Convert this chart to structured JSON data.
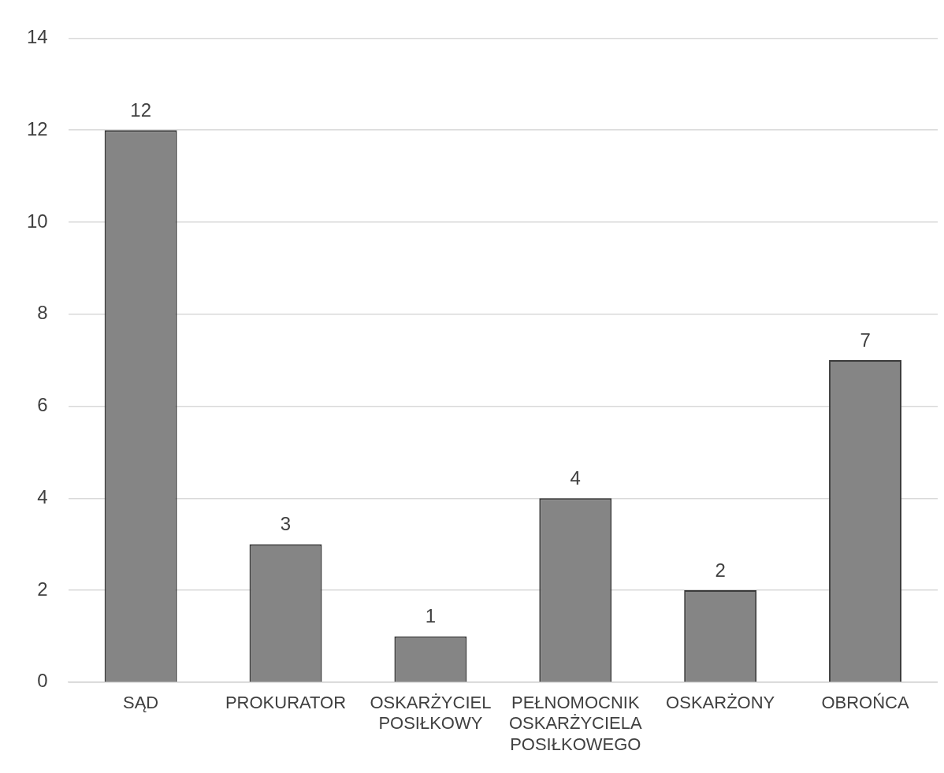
{
  "chart_data": {
    "type": "bar",
    "categories": [
      "SĄD",
      "PROKURATOR",
      "OSKARŻYCIEL POSIŁKOWY",
      "PEŁNOMOCNIK OSKARŻYCIELA POSIŁKOWEGO",
      "OSKARŻONY",
      "OBROŃCA"
    ],
    "values": [
      12,
      3,
      1,
      4,
      2,
      7
    ],
    "color": "#858585",
    "ylim": [
      0,
      14
    ],
    "yticks": [
      0,
      2,
      4,
      6,
      8,
      10,
      12,
      14
    ],
    "grid": "y",
    "legend": false,
    "data_labels": true
  }
}
